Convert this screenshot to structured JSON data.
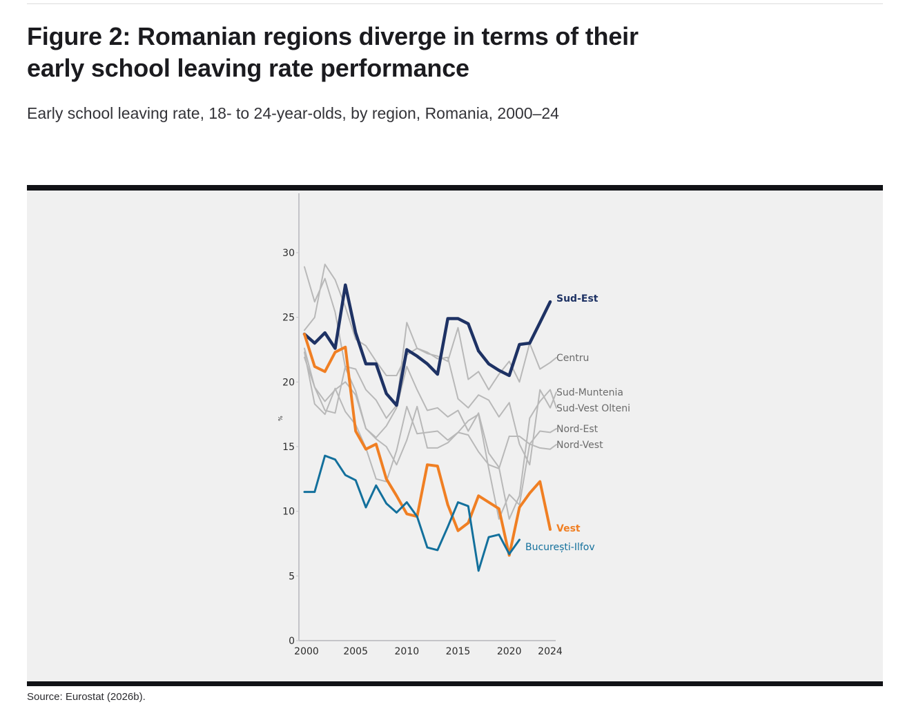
{
  "header": {
    "title": "Figure 2: Romanian regions diverge in terms of their early school leaving rate performance",
    "subtitle": "Early school leaving rate, 18- to 24-year-olds, by region, Romania, 2000–24"
  },
  "footer": {
    "source": "Source: Eurostat (2026b)."
  },
  "colors": {
    "panel_background": "#f0f0f0",
    "frame_bar": "#111216",
    "axis": "#c4c4c8",
    "context_line": "#b8b8b8",
    "sud_est": "#1e3264",
    "vest": "#f07f23",
    "bucuresti_ilfov": "#13709c",
    "label_gray": "#6b6b6b"
  },
  "chart_data": {
    "type": "line",
    "title": "Early school leaving rate, 18- to 24-year-olds, by region, Romania, 2000–24",
    "xlabel": "",
    "ylabel": "%",
    "xlim": [
      2000,
      2024
    ],
    "ylim": [
      0,
      30
    ],
    "x_ticks": [
      2000,
      2005,
      2010,
      2015,
      2020,
      2024
    ],
    "y_ticks": [
      0,
      5,
      10,
      15,
      20,
      25,
      30
    ],
    "grid": false,
    "legend": "direct labels at right end of lines",
    "x": [
      2000,
      2001,
      2002,
      2003,
      2004,
      2005,
      2006,
      2007,
      2008,
      2009,
      2010,
      2011,
      2012,
      2013,
      2014,
      2015,
      2016,
      2017,
      2018,
      2019,
      2020,
      2021,
      2022,
      2023,
      2024
    ],
    "series": [
      {
        "name": "Centru",
        "highlight": false,
        "color_key": "context_line",
        "values": [
          22.6,
          19.6,
          17.8,
          17.6,
          21.2,
          21.0,
          19.4,
          18.6,
          17.2,
          18.2,
          24.6,
          22.6,
          22.2,
          22.0,
          21.6,
          24.2,
          20.2,
          20.8,
          19.4,
          20.6,
          21.6,
          20.0,
          23.0,
          21.0,
          21.5
        ]
      },
      {
        "name": "Sud-Muntenia",
        "highlight": false,
        "color_key": "context_line",
        "values": [
          24.0,
          25.0,
          29.1,
          27.9,
          25.8,
          23.3,
          22.8,
          21.6,
          20.5,
          20.5,
          22.1,
          22.6,
          22.3,
          21.8,
          21.9,
          18.7,
          18.0,
          19.0,
          18.6,
          17.3,
          18.4,
          15.2,
          13.6,
          19.4,
          18.0
        ]
      },
      {
        "name": "Sud-Vest Olteni",
        "highlight": false,
        "color_key": "context_line",
        "values": [
          28.9,
          26.2,
          28.0,
          25.4,
          21.1,
          19.3,
          16.4,
          15.7,
          16.6,
          18.0,
          21.2,
          19.4,
          17.8,
          18.0,
          17.3,
          17.8,
          16.2,
          17.6,
          14.5,
          13.4,
          9.4,
          11.2,
          17.2,
          18.5,
          19.4
        ]
      },
      {
        "name": "Nord-Est",
        "highlight": false,
        "color_key": "context_line",
        "values": [
          21.9,
          19.6,
          18.5,
          19.4,
          20.0,
          19.0,
          16.4,
          15.6,
          15.0,
          13.6,
          15.5,
          18.1,
          14.9,
          14.9,
          15.3,
          16.1,
          17.0,
          17.5,
          13.3,
          9.4,
          11.3,
          10.5,
          15.2,
          16.2,
          16.1
        ]
      },
      {
        "name": "Nord-Vest",
        "highlight": false,
        "color_key": "context_line",
        "values": [
          22.3,
          18.3,
          17.5,
          19.5,
          17.7,
          16.7,
          14.9,
          12.5,
          12.3,
          14.7,
          18.1,
          16.0,
          16.1,
          16.2,
          15.5,
          16.1,
          15.9,
          14.6,
          13.6,
          13.3,
          15.8,
          15.8,
          15.2,
          14.9,
          14.8
        ]
      },
      {
        "name": "Sud-Est",
        "highlight": true,
        "color_key": "sud_est",
        "values": [
          23.7,
          23.0,
          23.8,
          22.6,
          27.5,
          23.8,
          21.4,
          21.4,
          19.1,
          18.2,
          22.5,
          22.0,
          21.4,
          20.6,
          24.9,
          24.9,
          24.5,
          22.4,
          21.4,
          20.9,
          20.5,
          22.9,
          23.0,
          24.6,
          26.2
        ]
      },
      {
        "name": "Vest",
        "highlight": true,
        "color_key": "vest",
        "values": [
          23.7,
          21.2,
          20.8,
          22.3,
          22.7,
          16.2,
          14.8,
          15.2,
          12.5,
          11.2,
          9.8,
          9.6,
          13.6,
          13.5,
          10.5,
          8.5,
          9.1,
          11.2,
          10.7,
          10.2,
          6.6,
          10.3,
          11.4,
          12.3,
          8.6
        ]
      },
      {
        "name": "București-Ilfov",
        "highlight": true,
        "color_key": "bucuresti_ilfov",
        "values": [
          11.5,
          11.5,
          14.3,
          14.0,
          12.8,
          12.4,
          10.3,
          12.0,
          10.6,
          9.9,
          10.7,
          9.6,
          7.2,
          7.0,
          8.8,
          10.7,
          10.4,
          5.4,
          8.0,
          8.2,
          6.7,
          7.8,
          null,
          null,
          null
        ]
      }
    ]
  }
}
